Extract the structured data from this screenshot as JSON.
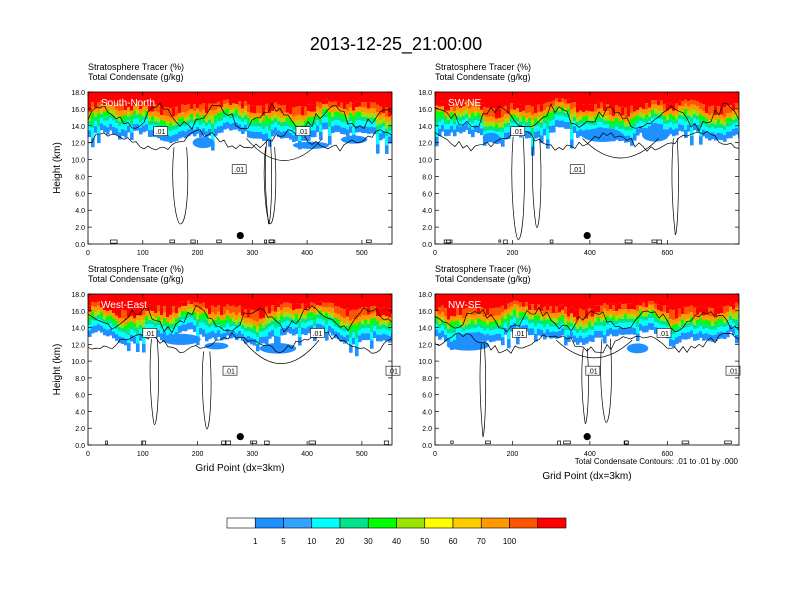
{
  "title": "2013-12-25_21:00:00",
  "footnote": "Total Condensate Contours: .01 to .01 by .000",
  "contour_label": ".01",
  "colors": {
    "levels": [
      "#ffffff",
      "#1e90ff",
      "#33a3ff",
      "#00ffff",
      "#00e58a",
      "#00ff00",
      "#99e500",
      "#ffff00",
      "#ffcc00",
      "#ff9900",
      "#ff5500",
      "#ff0000"
    ],
    "contour": "#000000",
    "sphere": "#000000"
  },
  "chart_data": [
    {
      "type": "heatmap",
      "panel": "top-left",
      "subtitle1": "Stratosphere Tracer   (%)",
      "subtitle2": "Total Condensate   (g/kg)",
      "label": "South-North",
      "ylabel": "Height (km)",
      "xlabel": "",
      "xlim": [
        0,
        555
      ],
      "ylim": [
        0,
        18
      ],
      "xticks": [
        0,
        100,
        200,
        300,
        400,
        500
      ],
      "yticks": [
        "0.0",
        "2.0",
        "4.0",
        "6.0",
        "8.0",
        "10.0",
        "12.0",
        "14.0",
        "16.0",
        "18.0"
      ],
      "marker_x": 278,
      "contour_labels": [
        ".01",
        ".01",
        ".01"
      ]
    },
    {
      "type": "heatmap",
      "panel": "top-right",
      "subtitle1": "Stratosphere Tracer   (%)",
      "subtitle2": "Total Condensate   (g/kg)",
      "label": "SW-NE",
      "ylabel": "",
      "xlabel": "",
      "xlim": [
        0,
        785
      ],
      "ylim": [
        0,
        18
      ],
      "xticks": [
        0,
        200,
        400,
        600
      ],
      "yticks": [
        "0.0",
        "2.0",
        "4.0",
        "6.0",
        "8.0",
        "10.0",
        "12.0",
        "14.0",
        "16.0",
        "18.0"
      ],
      "marker_x": 393,
      "contour_labels": [
        ".01",
        ".01"
      ]
    },
    {
      "type": "heatmap",
      "panel": "bottom-left",
      "subtitle1": "Stratosphere Tracer   (%)",
      "subtitle2": "Total Condensate   (g/kg)",
      "label": "West-East",
      "ylabel": "Height (km)",
      "xlabel": "Grid Point (dx=3km)",
      "xlim": [
        0,
        555
      ],
      "ylim": [
        0,
        18
      ],
      "xticks": [
        0,
        100,
        200,
        300,
        400,
        500
      ],
      "yticks": [
        "0.0",
        "2.0",
        "4.0",
        "6.0",
        "8.0",
        "10.0",
        "12.0",
        "14.0",
        "16.0",
        "18.0"
      ],
      "marker_x": 278,
      "contour_labels": [
        ".01",
        ".01",
        ".01",
        ".01"
      ]
    },
    {
      "type": "heatmap",
      "panel": "bottom-right",
      "subtitle1": "Stratosphere Tracer   (%)",
      "subtitle2": "Total Condensate   (g/kg)",
      "label": "NW-SE",
      "ylabel": "",
      "xlabel": "Grid Point (dx=3km)",
      "xlim": [
        0,
        785
      ],
      "ylim": [
        0,
        18
      ],
      "xticks": [
        0,
        200,
        400,
        600
      ],
      "yticks": [
        "0.0",
        "2.0",
        "4.0",
        "6.0",
        "8.0",
        "10.0",
        "12.0",
        "14.0",
        "16.0",
        "18.0"
      ],
      "marker_x": 393,
      "contour_labels": [
        ".01",
        ".01",
        ".01",
        ".01"
      ]
    }
  ],
  "colorbar": {
    "labels": [
      "1",
      "5",
      "10",
      "20",
      "30",
      "40",
      "50",
      "60",
      "70",
      "100"
    ]
  }
}
